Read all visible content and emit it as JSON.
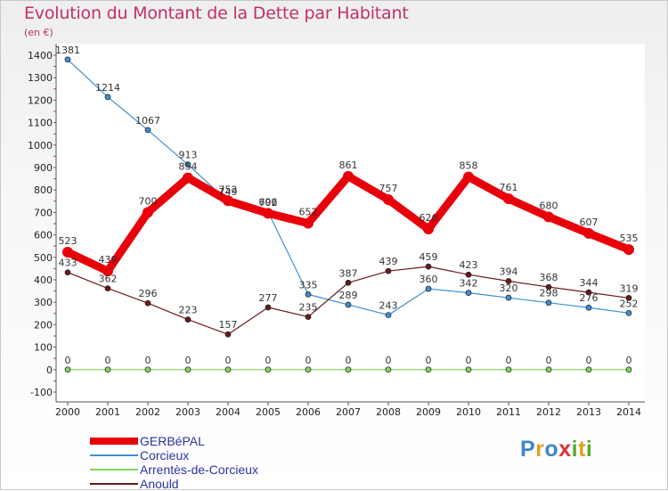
{
  "title": "Evolution du Montant de la Dette par Habitant",
  "unit": "(en €)",
  "logo": {
    "text": "Proxiti",
    "letters": [
      {
        "ch": "P",
        "color": "#3a86cc"
      },
      {
        "ch": "r",
        "color": "#e0a020"
      },
      {
        "ch": "o",
        "color": "#3a86cc"
      },
      {
        "ch": "x",
        "color": "#e03030"
      },
      {
        "ch": "i",
        "color": "#5aa832"
      },
      {
        "ch": "t",
        "color": "#e0a020"
      },
      {
        "ch": "i",
        "color": "#5aa832"
      }
    ]
  },
  "chart_data": {
    "type": "line",
    "title": "Evolution du Montant de la Dette par Habitant",
    "ylabel": "(en €)",
    "xlabel": "",
    "ylim": [
      -100,
      1400
    ],
    "yticks": [
      -100,
      0,
      100,
      200,
      300,
      400,
      500,
      600,
      700,
      800,
      900,
      1000,
      1100,
      1200,
      1300,
      1400
    ],
    "grid": false,
    "legend_position": "bottom-left",
    "x": [
      "2000",
      "2001",
      "2002",
      "2003",
      "2004",
      "2005",
      "2006",
      "2007",
      "2008",
      "2009",
      "2010",
      "2011",
      "2012",
      "2013",
      "2014"
    ],
    "series": [
      {
        "name": "GERBéPAL",
        "color": "#e8000b",
        "style": "thick",
        "values": [
          523,
          439,
          700,
          854,
          752,
          696,
          652,
          861,
          757,
          626,
          858,
          761,
          680,
          607,
          535
        ]
      },
      {
        "name": "Corcieux",
        "color": "#3f8fd2",
        "style": "thin",
        "values": [
          1381,
          1214,
          1067,
          913,
          749,
          702,
          335,
          289,
          243,
          360,
          342,
          320,
          298,
          276,
          252
        ]
      },
      {
        "name": "Arrentès-de-Corcieux",
        "color": "#7fd85a",
        "style": "thin",
        "values": [
          0,
          0,
          0,
          0,
          0,
          0,
          0,
          0,
          0,
          0,
          0,
          0,
          0,
          0,
          0
        ]
      },
      {
        "name": "Anould",
        "color": "#6b1a1a",
        "style": "thin",
        "values": [
          433,
          362,
          296,
          223,
          157,
          277,
          235,
          387,
          439,
          459,
          423,
          394,
          368,
          344,
          319
        ]
      }
    ]
  }
}
